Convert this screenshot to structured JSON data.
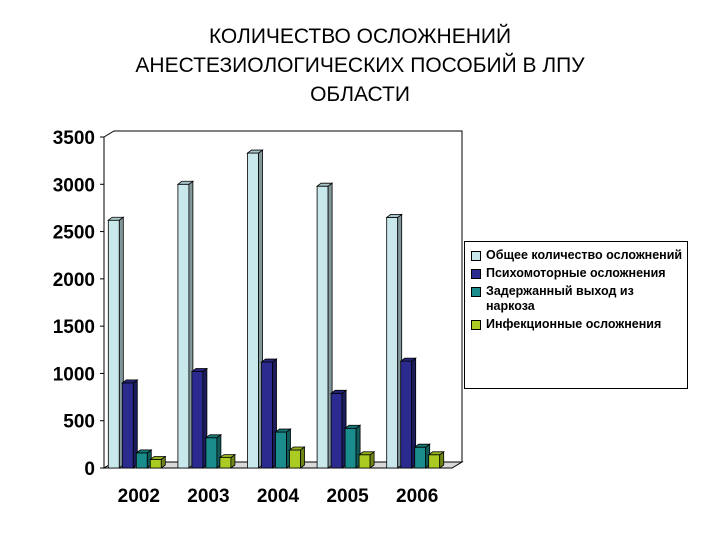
{
  "title": "КОЛИЧЕСТВО ОСЛОЖНЕНИЙ\nАНЕСТЕЗИОЛОГИЧЕСКИХ ПОСОБИЙ В ЛПУ\nОБЛАСТИ",
  "chart_data": {
    "type": "bar",
    "title": "КОЛИЧЕСТВО ОСЛОЖНЕНИЙ АНЕСТЕЗИОЛОГИЧЕСКИХ ПОСОБИЙ В ЛПУ ОБЛАСТИ",
    "categories": [
      "2002",
      "2003",
      "2004",
      "2005",
      "2006"
    ],
    "series": [
      {
        "name": "Общее количество осложнений",
        "values": [
          2620,
          3000,
          3330,
          2980,
          2650
        ],
        "color": "#c8e8ec"
      },
      {
        "name": "Психомоторные осложнения",
        "values": [
          900,
          1020,
          1120,
          790,
          1130
        ],
        "color": "#2b2b8f"
      },
      {
        "name": "Задержанный выход из наркоза",
        "values": [
          160,
          320,
          380,
          420,
          220
        ],
        "color": "#1a8c8c"
      },
      {
        "name": "Инфекционные осложнения",
        "values": [
          90,
          110,
          190,
          140,
          140
        ],
        "color": "#aacc22"
      }
    ],
    "y_ticks": [
      "0",
      "500",
      "1000",
      "1500",
      "2000",
      "2500",
      "3000",
      "3500"
    ],
    "ylim": [
      0,
      3500
    ],
    "xlabel": "",
    "ylabel": "",
    "grid": false,
    "legend_position": "right"
  }
}
